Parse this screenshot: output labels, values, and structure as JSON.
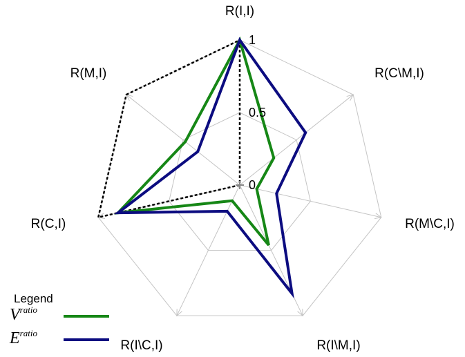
{
  "chart_data": {
    "type": "radar",
    "title": "",
    "axes": [
      "R(I,I)",
      "R(C\\M,I)",
      "R(M\\C,I)",
      "R(I\\M,I)",
      "R(I\\C,I)",
      "R(C,I)",
      "R(M,I)"
    ],
    "rlim": [
      0,
      1
    ],
    "ticks": [
      {
        "value": 0,
        "label": "0"
      },
      {
        "value": 0.5,
        "label": "0.5"
      },
      {
        "value": 1,
        "label": "1"
      }
    ],
    "grid_levels": [
      0.5,
      1
    ],
    "series": [
      {
        "name": "Vratio",
        "symbol": "V",
        "sup": "ratio",
        "color": "#168716",
        "style": "solid",
        "values": [
          1.0,
          0.3,
          0.12,
          0.46,
          0.12,
          0.86,
          0.48
        ]
      },
      {
        "name": "Eratio",
        "symbol": "E",
        "sup": "ratio",
        "color": "#0c0c80",
        "style": "solid",
        "values": [
          1.0,
          0.58,
          0.26,
          0.83,
          0.2,
          0.86,
          0.37
        ]
      },
      {
        "name": "",
        "color": "#000000",
        "style": "dotted",
        "values": [
          1.0,
          0.0,
          0.0,
          0.0,
          0.0,
          1.0,
          1.0
        ]
      }
    ],
    "legend": {
      "title": "Legend",
      "placement": "bottom-left"
    }
  }
}
